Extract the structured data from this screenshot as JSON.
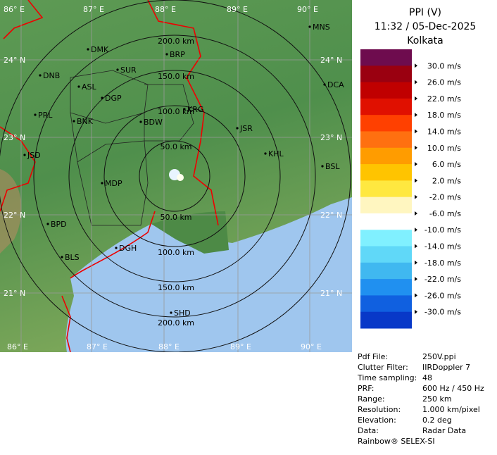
{
  "map": {
    "lon_labels": [
      "86° E",
      "87° E",
      "88° E",
      "89° E",
      "90° E"
    ],
    "lat_labels": [
      "24° N",
      "23° N",
      "22° N",
      "21° N"
    ],
    "range_labels_top": [
      "50.0 km",
      "100.0 km",
      "150.0 km",
      "200.0 km"
    ],
    "range_labels_bottom": [
      "50.0 km",
      "100.0 km",
      "150.0 km",
      "200.0 km"
    ],
    "cities": [
      "MNS",
      "DMK",
      "BRP",
      "DNB",
      "SUR",
      "ASL",
      "DGP",
      "DCA",
      "PRL",
      "BNK",
      "KRG",
      "BDW",
      "JSR",
      "JSD",
      "KHL",
      "BSL",
      "MDP",
      "BPD",
      "DGH",
      "BLS",
      "SHD"
    ]
  },
  "legend": {
    "title": "PPI (V)",
    "time": "11:32 / 05-Dec-2025",
    "station": "Kolkata",
    "scale": [
      "30.0 m/s",
      "26.0 m/s",
      "22.0 m/s",
      "18.0 m/s",
      "14.0 m/s",
      "10.0 m/s",
      "6.0 m/s",
      "2.0 m/s",
      "-2.0 m/s",
      "-6.0 m/s",
      "-10.0 m/s",
      "-14.0 m/s",
      "-18.0 m/s",
      "-22.0 m/s",
      "-26.0 m/s",
      "-30.0 m/s"
    ]
  },
  "info": {
    "rows": [
      [
        "Pdf File:",
        "250V.ppi"
      ],
      [
        "Clutter Filter:",
        "IIRDoppler 7"
      ],
      [
        "Time sampling:",
        "48"
      ],
      [
        "PRF:",
        "600 Hz / 450 Hz"
      ],
      [
        "Range:",
        "250 km"
      ],
      [
        "Resolution:",
        "1.000 km/pixel"
      ],
      [
        "Elevation:",
        "0.2 deg"
      ],
      [
        "Data:",
        "Radar Data"
      ]
    ],
    "footer": "Rainbow® SELEX-SI"
  }
}
